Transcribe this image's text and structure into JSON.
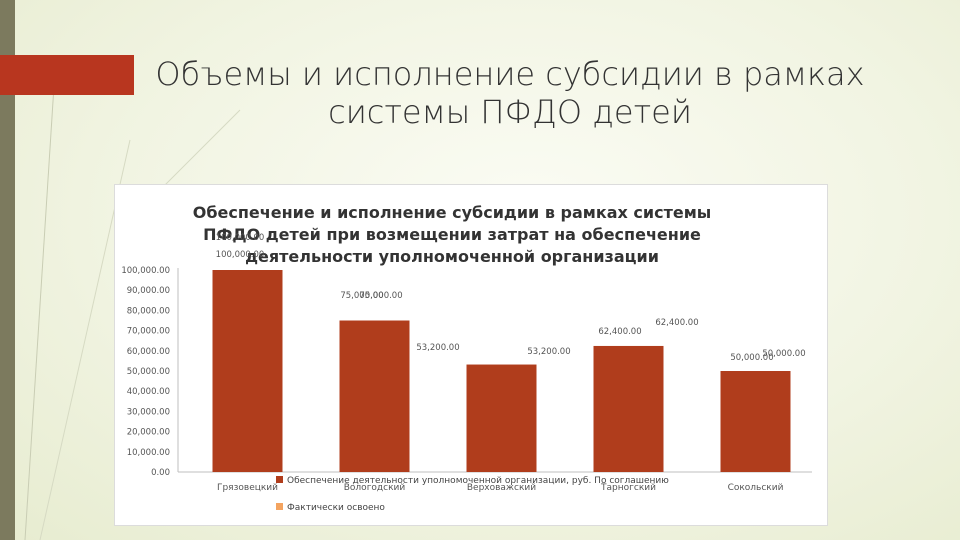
{
  "slide": {
    "title": "Объемы и исполнение субсидии в рамках системы ПФДО детей",
    "accent_color": "#b8361f"
  },
  "chart_data": {
    "type": "bar",
    "title": "Обеспечение и исполнение субсидии в рамках системы ПФДО детей при возмещении затрат на обеспечение деятельности уполномоченной организации",
    "categories": [
      "Грязовецкий",
      "Вологодский",
      "Верховажский",
      "Тарногский",
      "Сокольский"
    ],
    "series": [
      {
        "name": "Обеспечение деятельности уполномоченной организации, руб. По соглашению",
        "color": "#b03d1c",
        "values": [
          100000,
          75000,
          53200,
          62400,
          50000
        ],
        "labels": [
          "100,000.00",
          "75,000.00",
          "53,200.00",
          "62,400.00",
          "50,000.00"
        ]
      },
      {
        "name": "Фактически освоено",
        "color": "#f4a460",
        "values": [
          100000,
          75000,
          53200,
          62400,
          50000
        ],
        "labels": [
          "100,000.00",
          "75,000.00",
          "53,200.00",
          "62,400.00",
          "50,000.00"
        ]
      }
    ],
    "ylim": [
      0,
      100000
    ],
    "yticks": [
      0,
      10000,
      20000,
      30000,
      40000,
      50000,
      60000,
      70000,
      80000,
      90000,
      100000
    ],
    "ytick_labels": [
      "0.00",
      "10,000.00",
      "20,000.00",
      "30,000.00",
      "40,000.00",
      "50,000.00",
      "60,000.00",
      "70,000.00",
      "80,000.00",
      "90,000.00",
      "100,000.00"
    ],
    "grid": false,
    "legend_position": "bottom"
  }
}
